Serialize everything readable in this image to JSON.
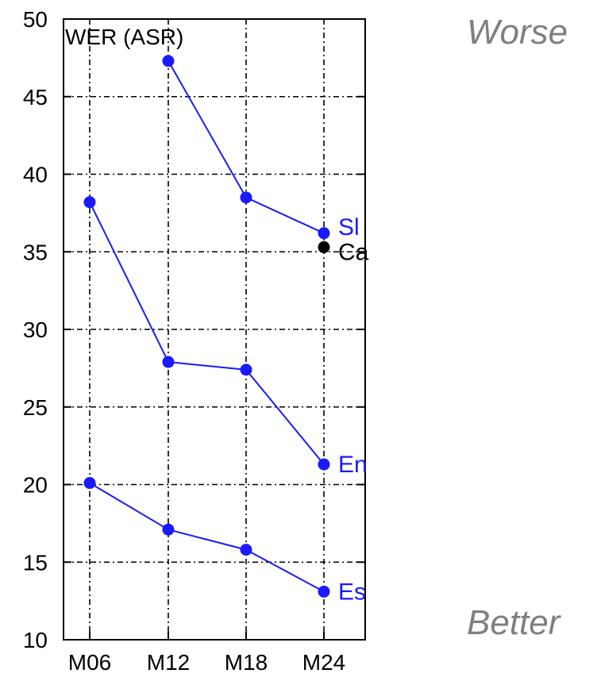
{
  "chart_data": {
    "type": "line",
    "title": "WER (ASR)",
    "categories": [
      "M06",
      "M12",
      "M18",
      "M24"
    ],
    "ylim": [
      10,
      50
    ],
    "yticks": [
      10,
      15,
      20,
      25,
      30,
      35,
      40,
      45,
      50
    ],
    "grid": true,
    "series": [
      {
        "name": "Sl",
        "color": "#1a1aff",
        "values": [
          null,
          47.3,
          38.5,
          36.2
        ]
      },
      {
        "name": "Ca",
        "color": "#000000",
        "values": [
          null,
          null,
          null,
          35.3
        ]
      },
      {
        "name": "En",
        "color": "#1a1aff",
        "values": [
          38.2,
          27.9,
          27.4,
          21.3
        ]
      },
      {
        "name": "Es",
        "color": "#1a1aff",
        "values": [
          20.1,
          17.1,
          15.8,
          13.1
        ]
      }
    ]
  },
  "annotations": {
    "worse": "Worse",
    "better": "Better"
  }
}
